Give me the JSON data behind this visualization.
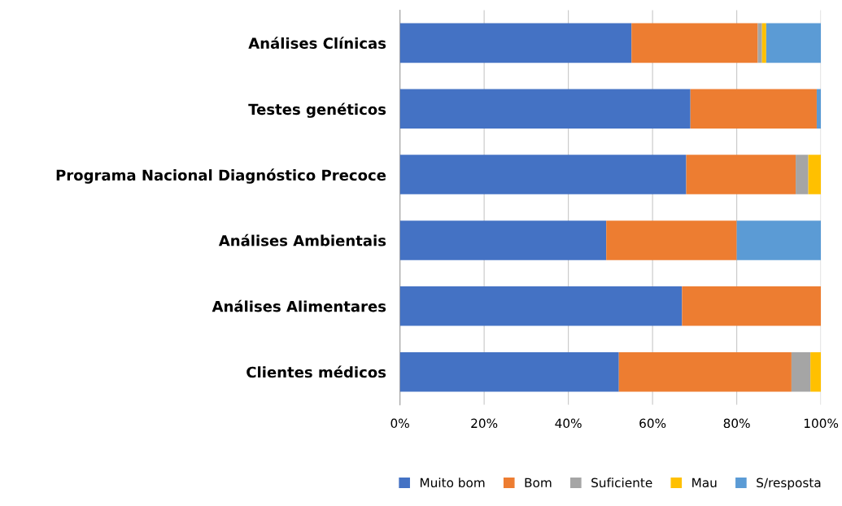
{
  "chart_data": {
    "type": "bar",
    "orientation": "horizontal",
    "stacked": true,
    "categories": [
      "Análises Clínicas",
      "Testes genéticos",
      "Programa Nacional Diagnóstico Precoce",
      "Análises Ambientais",
      "Análises Alimentares",
      "Clientes médicos"
    ],
    "series": [
      {
        "name": "Muito bom",
        "color": "#4472c4",
        "values": [
          55,
          69,
          68,
          49,
          67,
          52
        ]
      },
      {
        "name": "Bom",
        "color": "#ed7d31",
        "values": [
          30,
          30,
          26,
          31,
          33,
          41
        ]
      },
      {
        "name": "Suficiente",
        "color": "#a5a5a5",
        "values": [
          1,
          0,
          3,
          0,
          0,
          4.5
        ]
      },
      {
        "name": "Mau",
        "color": "#ffc000",
        "values": [
          1,
          0,
          3,
          0,
          0,
          2.5
        ]
      },
      {
        "name": "S/resposta",
        "color": "#5b9bd5",
        "values": [
          13,
          1,
          0,
          20,
          0,
          0
        ]
      }
    ],
    "xlim": [
      0,
      100
    ],
    "xticks": [
      {
        "value": 0,
        "label": "0%"
      },
      {
        "value": 20,
        "label": "20%"
      },
      {
        "value": 40,
        "label": "40%"
      },
      {
        "value": 60,
        "label": "60%"
      },
      {
        "value": 80,
        "label": "80%"
      },
      {
        "value": 100,
        "label": "100%"
      }
    ],
    "grid": "x",
    "legend": "bottom"
  }
}
